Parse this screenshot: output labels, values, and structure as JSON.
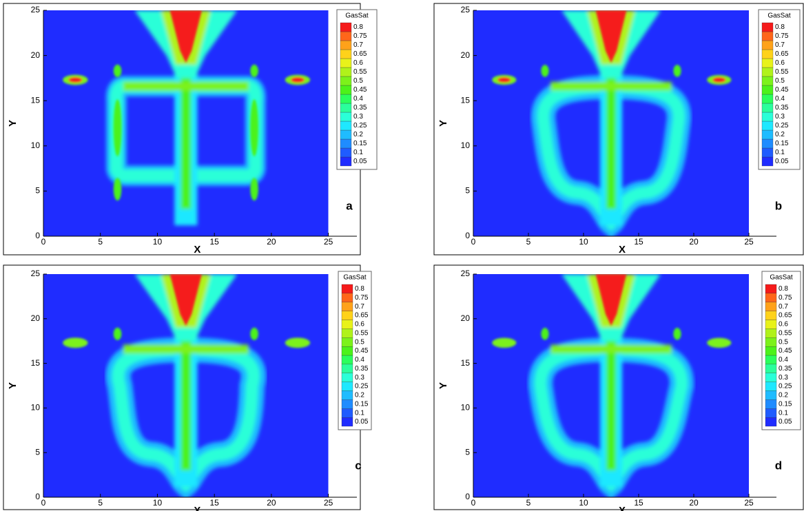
{
  "chart_data": [
    {
      "type": "contour",
      "panel_label": "a",
      "xlabel": "X",
      "ylabel": "Y",
      "xlim": [
        0,
        27.5
      ],
      "ylim": [
        0,
        25
      ],
      "xticks": [
        0,
        5,
        10,
        15,
        20,
        25
      ],
      "yticks": [
        0,
        5,
        10,
        15,
        20,
        25
      ],
      "colorbar": {
        "title": "GasSat",
        "levels": [
          0.05,
          0.1,
          0.15,
          0.2,
          0.25,
          0.3,
          0.35,
          0.4,
          0.45,
          0.5,
          0.55,
          0.6,
          0.65,
          0.7,
          0.75,
          0.8
        ],
        "colors": [
          "#1f2cff",
          "#1f5cff",
          "#1f8cff",
          "#1fbcff",
          "#1fe8ff",
          "#2affd8",
          "#2aff9c",
          "#2aff5c",
          "#4cf21a",
          "#7cf21a",
          "#b0f21a",
          "#e8f21a",
          "#ffd21a",
          "#ffa21a",
          "#ff661a",
          "#f51a1a"
        ]
      }
    },
    {
      "type": "contour",
      "panel_label": "b",
      "xlabel": "X",
      "ylabel": "Y",
      "xlim": [
        0,
        27.5
      ],
      "ylim": [
        0,
        25
      ],
      "xticks": [
        0,
        5,
        10,
        15,
        20,
        25
      ],
      "yticks": [
        0,
        5,
        10,
        15,
        20,
        25
      ],
      "colorbar": {
        "title": "GasSat",
        "levels": [
          0.05,
          0.1,
          0.15,
          0.2,
          0.25,
          0.3,
          0.35,
          0.4,
          0.45,
          0.5,
          0.55,
          0.6,
          0.65,
          0.7,
          0.75,
          0.8
        ],
        "colors": [
          "#1f2cff",
          "#1f5cff",
          "#1f8cff",
          "#1fbcff",
          "#1fe8ff",
          "#2affd8",
          "#2aff9c",
          "#2aff5c",
          "#4cf21a",
          "#7cf21a",
          "#b0f21a",
          "#e8f21a",
          "#ffd21a",
          "#ffa21a",
          "#ff661a",
          "#f51a1a"
        ]
      }
    },
    {
      "type": "contour",
      "panel_label": "c",
      "xlabel": "X",
      "ylabel": "Y",
      "xlim": [
        0,
        27.5
      ],
      "ylim": [
        0,
        25
      ],
      "xticks": [
        0,
        5,
        10,
        15,
        20,
        25
      ],
      "yticks": [
        0,
        5,
        10,
        15,
        20,
        25
      ],
      "colorbar": {
        "title": "GasSat",
        "levels": [
          0.05,
          0.1,
          0.15,
          0.2,
          0.25,
          0.3,
          0.35,
          0.4,
          0.45,
          0.5,
          0.55,
          0.6,
          0.65,
          0.7,
          0.75,
          0.8
        ],
        "colors": [
          "#1f2cff",
          "#1f5cff",
          "#1f8cff",
          "#1fbcff",
          "#1fe8ff",
          "#2affd8",
          "#2aff9c",
          "#2aff5c",
          "#4cf21a",
          "#7cf21a",
          "#b0f21a",
          "#e8f21a",
          "#ffd21a",
          "#ffa21a",
          "#ff661a",
          "#f51a1a"
        ]
      }
    },
    {
      "type": "contour",
      "panel_label": "d",
      "xlabel": "X",
      "ylabel": "Y",
      "xlim": [
        0,
        27.5
      ],
      "ylim": [
        0,
        25
      ],
      "xticks": [
        0,
        5,
        10,
        15,
        20,
        25
      ],
      "yticks": [
        0,
        5,
        10,
        15,
        20,
        25
      ],
      "colorbar": {
        "title": "GasSat",
        "levels": [
          0.05,
          0.1,
          0.15,
          0.2,
          0.25,
          0.3,
          0.35,
          0.4,
          0.45,
          0.5,
          0.55,
          0.6,
          0.65,
          0.7,
          0.75,
          0.8
        ],
        "colors": [
          "#1f2cff",
          "#1f5cff",
          "#1f8cff",
          "#1fbcff",
          "#1fe8ff",
          "#2affd8",
          "#2aff9c",
          "#2aff5c",
          "#4cf21a",
          "#7cf21a",
          "#b0f21a",
          "#e8f21a",
          "#ffd21a",
          "#ffa21a",
          "#ff661a",
          "#f51a1a"
        ]
      }
    }
  ]
}
